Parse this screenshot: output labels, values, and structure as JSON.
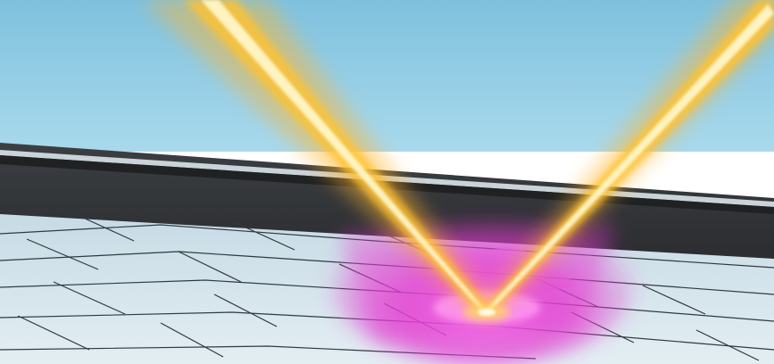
{
  "scene": {
    "subject": "laser-beam-reflection",
    "colors": {
      "sky_top": "#7fc1de",
      "sky_bottom": "#a9d9ec",
      "rail_highlight": "#c9d3d8",
      "rail_dark": "#2c2e31",
      "wall_dark": "#3a3d40",
      "tile_light": "#d7e6ee",
      "tile_mid": "#bcd2de",
      "tile_line": "#2f3a40",
      "beam_core": "#fff6c8",
      "beam_mid": "#ffc233",
      "beam_outer": "#ff9a1a",
      "plasma": "#e43bd1"
    }
  }
}
